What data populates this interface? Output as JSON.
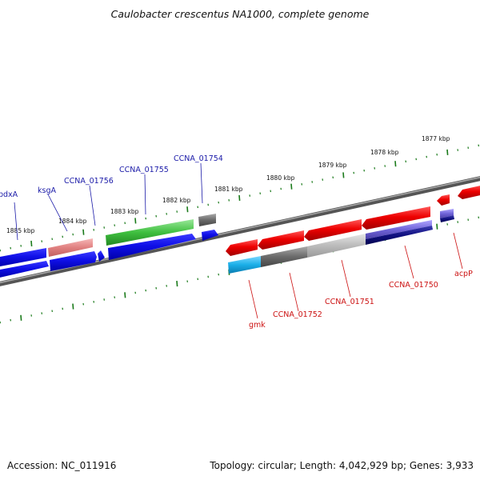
{
  "title": "Caulobacter crescentus NA1000, complete genome",
  "footer": {
    "accession": "Accession: NC_011916",
    "topology": "Topology: circular; Length: 4,042,929 bp; Genes: 3,933"
  },
  "colors": {
    "backbone": "#777777",
    "scale_ticks": "#1a7a1a",
    "label_left_strand": "#1a1aa8",
    "label_right_strand": "#cc1111"
  },
  "scale_labels": [
    "1877 kbp",
    "1878 kbp",
    "1879 kbp",
    "1880 kbp",
    "1881 kbp",
    "1882 kbp",
    "1883 kbp",
    "1884 kbp",
    "1885 kbp"
  ],
  "genes": [
    {
      "name": "pdxA",
      "color": "blue"
    },
    {
      "name": "ksgA",
      "color": "blue"
    },
    {
      "name": "CCNA_01756",
      "color": "blue"
    },
    {
      "name": "CCNA_01755",
      "color": "blue"
    },
    {
      "name": "CCNA_01754",
      "color": "blue"
    },
    {
      "name": "gmk",
      "color": "red"
    },
    {
      "name": "CCNA_01752",
      "color": "red"
    },
    {
      "name": "CCNA_01751",
      "color": "red"
    },
    {
      "name": "CCNA_01750",
      "color": "red"
    },
    {
      "name": "acpP",
      "color": "red"
    }
  ]
}
